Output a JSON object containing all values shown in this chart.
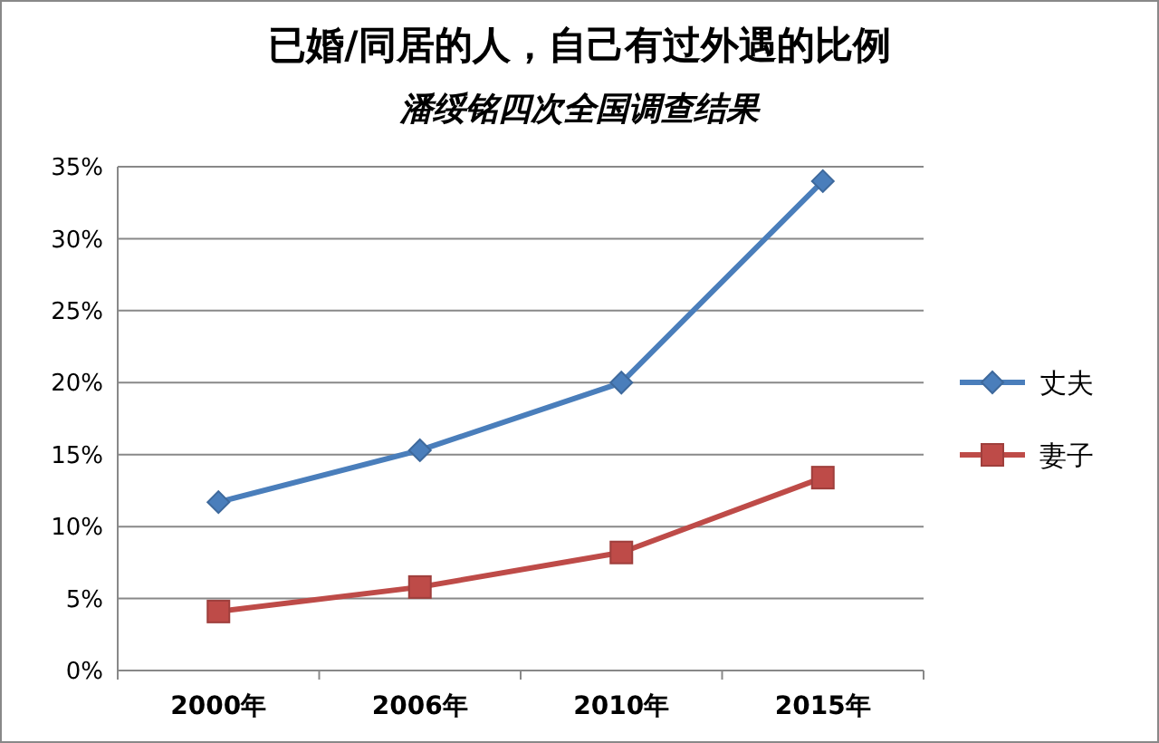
{
  "chart_data": {
    "type": "line",
    "title": "已婚/同居的人，自己有过外遇的比例",
    "subtitle": "潘绥铭四次全国调查结果",
    "categories": [
      "2000年",
      "2006年",
      "2010年",
      "2015年"
    ],
    "series": [
      {
        "name": "丈夫",
        "color": "#4a7ebb",
        "marker": "diamond",
        "values": [
          11.7,
          15.3,
          20,
          34
        ]
      },
      {
        "name": "妻子",
        "color": "#be4b48",
        "marker": "square",
        "values": [
          4.1,
          5.8,
          8.2,
          13.4
        ]
      }
    ],
    "ylim": [
      0,
      35
    ],
    "yticks": [
      {
        "value": 0,
        "label": "0%"
      },
      {
        "value": 5,
        "label": "5%"
      },
      {
        "value": 10,
        "label": "10%"
      },
      {
        "value": 15,
        "label": "15%"
      },
      {
        "value": 20,
        "label": "20%"
      },
      {
        "value": 25,
        "label": "25%"
      },
      {
        "value": 30,
        "label": "30%"
      },
      {
        "value": 35,
        "label": "35%"
      }
    ],
    "grid": "y",
    "legend": "right",
    "line_style": "solid"
  }
}
